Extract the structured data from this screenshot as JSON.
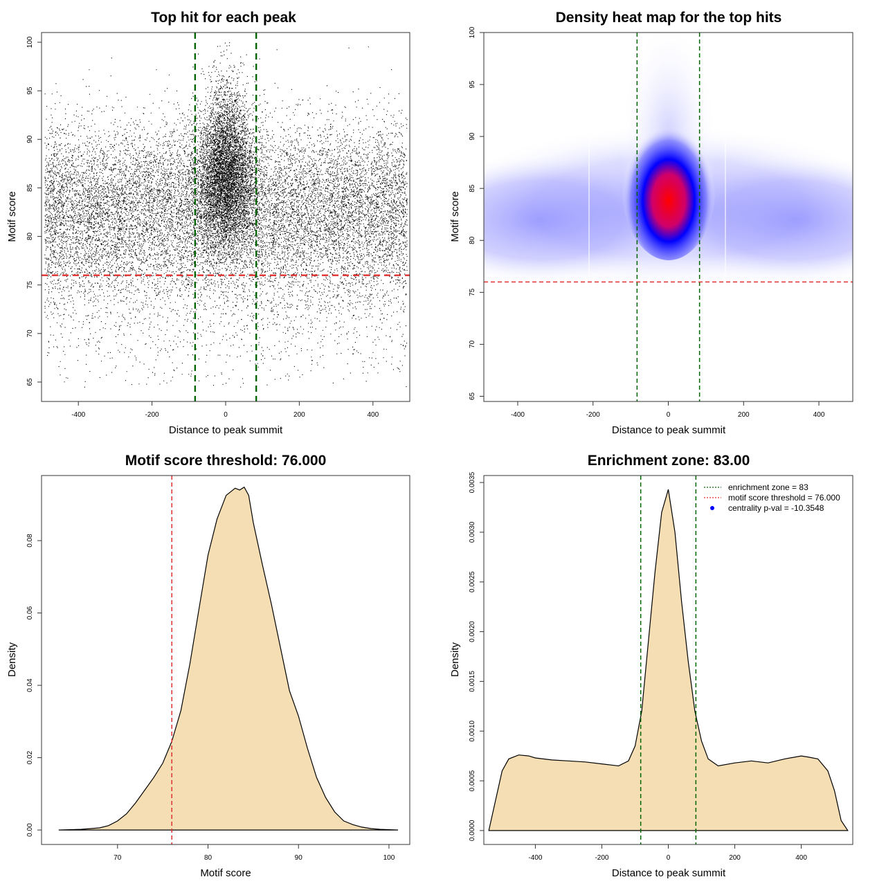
{
  "colors": {
    "threshold_line": "#e03030",
    "zone_line": "#006400",
    "density_fill": "#f5deb3",
    "heat_low": "#ffffff",
    "heat_mid": "#0000ff",
    "heat_high": "#ff0000",
    "legend_point": "#0000ff"
  },
  "chart_data": [
    {
      "type": "scatter",
      "title": "Top hit for each peak",
      "xlabel": "Distance to peak summit",
      "ylabel": "Motif score",
      "xlim": [
        -500,
        500
      ],
      "ylim": [
        63,
        101
      ],
      "xticks": [
        -400,
        -200,
        0,
        200,
        400
      ],
      "yticks": [
        65,
        70,
        75,
        80,
        85,
        90,
        95,
        100
      ],
      "hlines": [
        76
      ],
      "vlines": [
        -83,
        83
      ],
      "points_note": "approx. 40000 points; dense band 78–88 across x, concentrated column around x = 0 extending to 100"
    },
    {
      "type": "heatmap",
      "title": "Density heat map for the top hits",
      "xlabel": "Distance to peak summit",
      "ylabel": "Motif score",
      "xlim": [
        -490,
        490
      ],
      "ylim": [
        64.5,
        100
      ],
      "xticks": [
        -400,
        -200,
        0,
        200,
        400
      ],
      "yticks": [
        65,
        70,
        75,
        80,
        85,
        90,
        95,
        100
      ],
      "hlines": [
        76
      ],
      "vlines": [
        -83,
        83
      ],
      "hotspot": {
        "x": 0,
        "y": 85
      }
    },
    {
      "type": "area",
      "title": "Motif score threshold: 76.000",
      "xlabel": "Motif score",
      "ylabel": "Density",
      "xlim": [
        61.6,
        102.3
      ],
      "ylim": [
        -0.004,
        0.098
      ],
      "xticks": [
        70,
        80,
        90,
        100
      ],
      "yticks": [
        0.0,
        0.02,
        0.04,
        0.06,
        0.08
      ],
      "ytick_labels": [
        "0.00",
        "0.02",
        "0.04",
        "0.06",
        "0.08"
      ],
      "vlines": [
        76
      ],
      "x": [
        63.5,
        66,
        68,
        69,
        70,
        71,
        72,
        73,
        74,
        75,
        76,
        77,
        78,
        79,
        80,
        81,
        82,
        83,
        83.5,
        84,
        84.5,
        85,
        86,
        87,
        88,
        89,
        90,
        91,
        92,
        93,
        94,
        95,
        96,
        97,
        98,
        99,
        100,
        101
      ],
      "y": [
        0.0,
        0.0002,
        0.0006,
        0.0012,
        0.0025,
        0.0045,
        0.0075,
        0.011,
        0.0145,
        0.0185,
        0.0245,
        0.033,
        0.046,
        0.061,
        0.076,
        0.086,
        0.0925,
        0.0945,
        0.094,
        0.0948,
        0.0925,
        0.085,
        0.0735,
        0.0625,
        0.0505,
        0.0385,
        0.0315,
        0.0225,
        0.0145,
        0.009,
        0.005,
        0.0025,
        0.0015,
        0.0008,
        0.0004,
        0.0002,
        0.0001,
        0.0
      ]
    },
    {
      "type": "area",
      "title": "Enrichment zone: 83.00",
      "xlabel": "Distance to peak summit",
      "ylabel": "Density",
      "xlim": [
        -555,
        555
      ],
      "ylim": [
        -0.00014,
        0.00357
      ],
      "xticks": [
        -400,
        -200,
        0,
        200,
        400
      ],
      "yticks": [
        0.0,
        0.0005,
        0.001,
        0.0015,
        0.002,
        0.0025,
        0.003,
        0.0035
      ],
      "ytick_labels": [
        "0.0000",
        "0.0005",
        "0.0010",
        "0.0015",
        "0.0020",
        "0.0025",
        "0.0030",
        "0.0035"
      ],
      "vlines": [
        -83,
        83
      ],
      "x": [
        -540,
        -520,
        -500,
        -480,
        -450,
        -420,
        -400,
        -350,
        -300,
        -250,
        -200,
        -150,
        -120,
        -100,
        -80,
        -60,
        -40,
        -20,
        0,
        20,
        40,
        60,
        80,
        100,
        120,
        150,
        200,
        250,
        300,
        350,
        400,
        420,
        450,
        480,
        500,
        520,
        540
      ],
      "y": [
        0.0,
        0.0003,
        0.0006,
        0.00072,
        0.00076,
        0.00075,
        0.00073,
        0.00071,
        0.0007,
        0.00069,
        0.00067,
        0.00065,
        0.0007,
        0.00085,
        0.0012,
        0.0019,
        0.0026,
        0.0032,
        0.00343,
        0.003,
        0.0023,
        0.0017,
        0.0012,
        0.0009,
        0.00072,
        0.00065,
        0.00068,
        0.0007,
        0.00068,
        0.00072,
        0.00075,
        0.00074,
        0.00072,
        0.0006,
        0.0004,
        0.0001,
        0.0
      ],
      "legend": [
        {
          "label": "enrichment zone = 83",
          "style": "dotted-green"
        },
        {
          "label": "motif score threshold = 76.000",
          "style": "dotted-red"
        },
        {
          "label": "centrality p-val = -10.3548",
          "style": "blue-point"
        }
      ]
    }
  ]
}
